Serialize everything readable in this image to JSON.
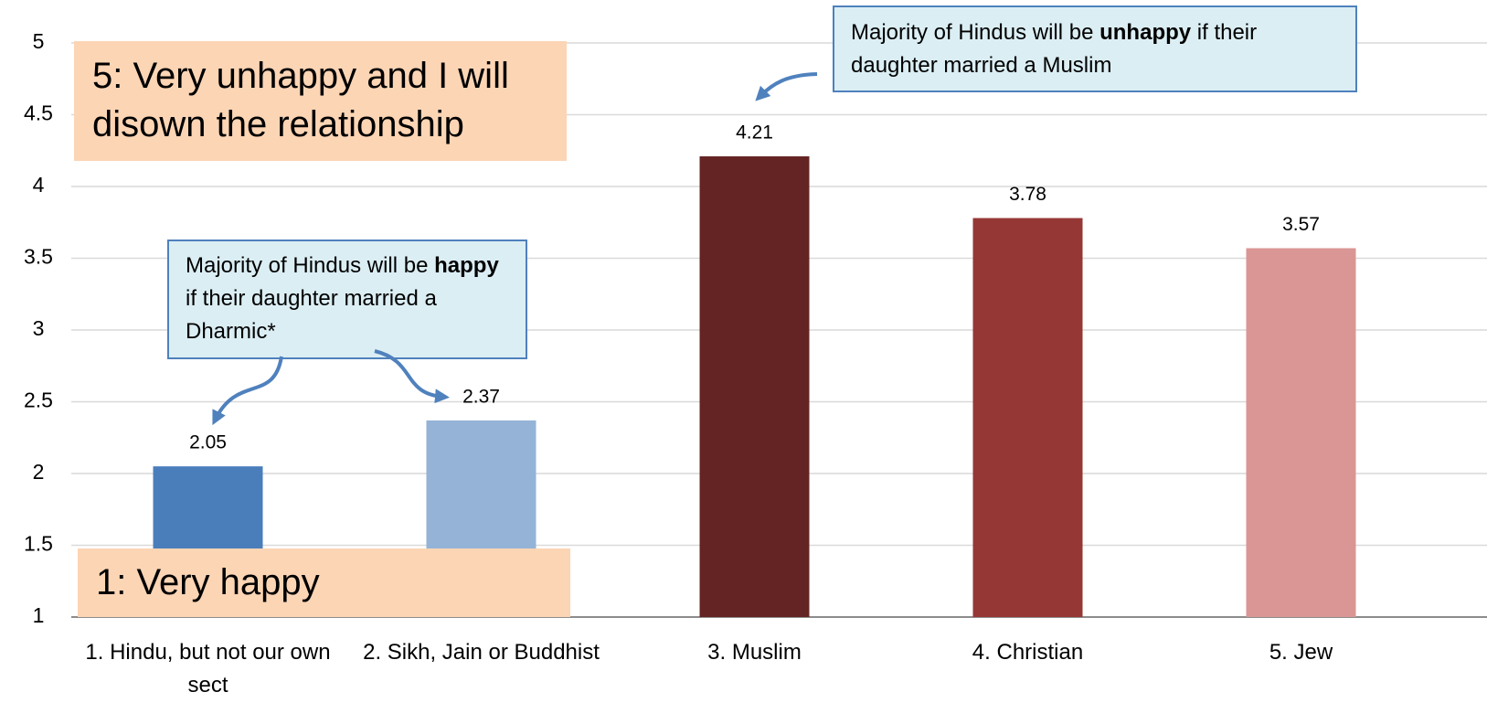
{
  "chart_data": {
    "type": "bar",
    "categories": [
      "1. Hindu, but not our own sect",
      "2. Sikh, Jain or Buddhist",
      "3. Muslim",
      "4. Christian",
      "5. Jew"
    ],
    "values": [
      2.05,
      2.37,
      4.21,
      3.78,
      3.57
    ],
    "colors": [
      "#4a7ebb",
      "#95b3d7",
      "#632423",
      "#953735",
      "#d99694"
    ],
    "ylim": [
      1,
      5
    ],
    "yticks": [
      1,
      1.5,
      2,
      2.5,
      3,
      3.5,
      4,
      4.5,
      5
    ],
    "grid": true,
    "scale_labels": [
      "5: Very unhappy and I will disown the relationship",
      "1: Very happy"
    ],
    "annotations": [
      {
        "runs": [
          "Majority of Hindus will be ",
          "happy",
          " if their daughter married a Dharmic*"
        ]
      },
      {
        "runs": [
          "Majority of Hindus will be ",
          "unhappy",
          " if their daughter married a Muslim"
        ]
      }
    ]
  }
}
